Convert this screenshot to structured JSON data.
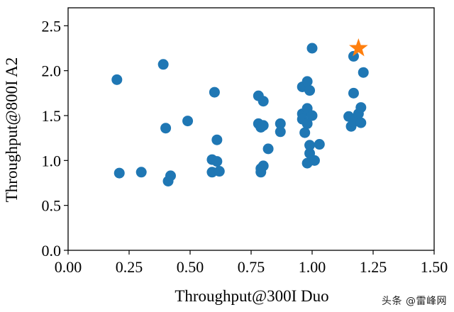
{
  "chart_data": {
    "type": "scatter",
    "title": "",
    "xlabel": "Throughput@300I Duo",
    "ylabel": "Throughput@800I A2",
    "xlim": [
      0.0,
      1.5
    ],
    "ylim": [
      0.0,
      2.7
    ],
    "xticks": [
      "0.00",
      "0.25",
      "0.50",
      "0.75",
      "1.00",
      "1.25",
      "1.50"
    ],
    "yticks": [
      "0.0",
      "0.5",
      "1.0",
      "1.5",
      "2.0",
      "2.5"
    ],
    "grid": false,
    "series": [
      {
        "marker": "circle",
        "color": "#1f77b4",
        "points": [
          [
            0.2,
            1.9
          ],
          [
            0.21,
            0.86
          ],
          [
            0.3,
            0.87
          ],
          [
            0.39,
            2.07
          ],
          [
            0.4,
            1.36
          ],
          [
            0.41,
            0.77
          ],
          [
            0.42,
            0.83
          ],
          [
            0.49,
            1.44
          ],
          [
            0.59,
            1.01
          ],
          [
            0.59,
            0.87
          ],
          [
            0.6,
            1.76
          ],
          [
            0.61,
            1.23
          ],
          [
            0.61,
            0.99
          ],
          [
            0.62,
            0.88
          ],
          [
            0.78,
            1.72
          ],
          [
            0.78,
            1.41
          ],
          [
            0.79,
            1.37
          ],
          [
            0.79,
            0.91
          ],
          [
            0.79,
            0.87
          ],
          [
            0.8,
            1.66
          ],
          [
            0.8,
            1.39
          ],
          [
            0.8,
            0.94
          ],
          [
            0.82,
            1.13
          ],
          [
            0.87,
            1.41
          ],
          [
            0.87,
            1.32
          ],
          [
            0.96,
            1.82
          ],
          [
            0.96,
            1.52
          ],
          [
            0.96,
            1.46
          ],
          [
            0.97,
            1.31
          ],
          [
            0.98,
            1.88
          ],
          [
            0.98,
            1.58
          ],
          [
            0.98,
            1.41
          ],
          [
            0.98,
            0.97
          ],
          [
            0.99,
            1.78
          ],
          [
            0.99,
            1.17
          ],
          [
            0.99,
            1.08
          ],
          [
            1.0,
            2.25
          ],
          [
            1.0,
            1.5
          ],
          [
            1.01,
            1.0
          ],
          [
            1.03,
            1.18
          ],
          [
            1.15,
            1.49
          ],
          [
            1.16,
            1.38
          ],
          [
            1.17,
            2.16
          ],
          [
            1.17,
            1.75
          ],
          [
            1.17,
            1.43
          ],
          [
            1.18,
            1.47
          ],
          [
            1.19,
            1.52
          ],
          [
            1.2,
            1.59
          ],
          [
            1.2,
            1.42
          ],
          [
            1.21,
            1.98
          ]
        ]
      },
      {
        "marker": "star",
        "color": "#ff7f0e",
        "points": [
          [
            1.19,
            2.25
          ]
        ]
      }
    ]
  },
  "watermark": "头条 @雷峰网"
}
